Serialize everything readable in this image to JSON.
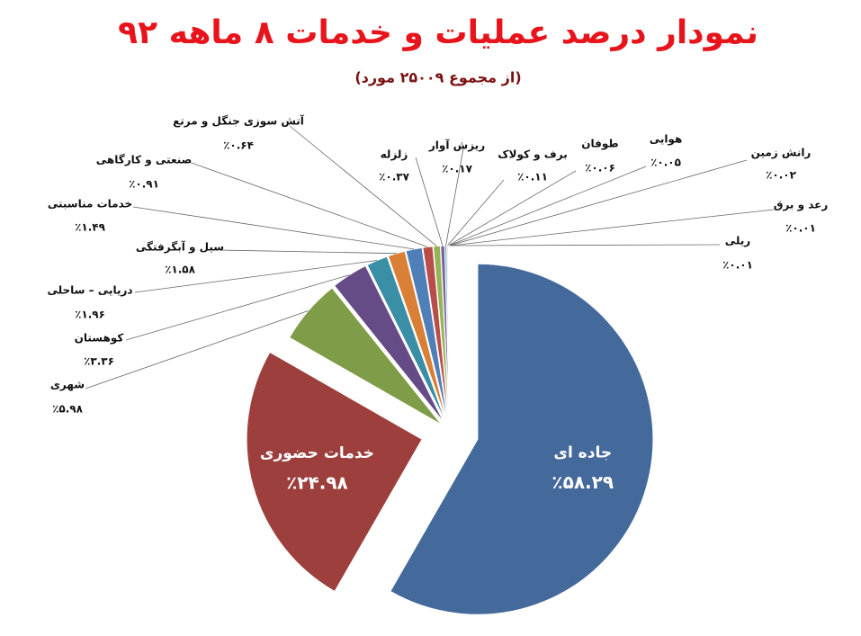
{
  "chart_data": {
    "type": "pie",
    "title": "نمودار درصد عملیات و خدمات ۸ ماهه ۹۲",
    "subtitle": "(از مجموع ۲۵۰۰۹ مورد)",
    "categories": [
      "جاده ای",
      "خدمات حضوری",
      "شهری",
      "کوهستان",
      "دریایی – ساحلی",
      "سیل و آبگرفتگی",
      "خدمات مناسبتی",
      "صنعتی و کارگاهی",
      "آتش سوزی جنگل و مرتع",
      "زلزله",
      "ریزش آوار",
      "برف و کولاک",
      "طوفان",
      "هوایی",
      "رانش زمین",
      "رعد و برق",
      "ریلی"
    ],
    "values": [
      58.29,
      24.98,
      5.98,
      3.36,
      1.96,
      1.58,
      1.49,
      0.91,
      0.64,
      0.37,
      0.17,
      0.11,
      0.06,
      0.05,
      0.02,
      0.01,
      0.01
    ],
    "value_labels": [
      "٪۵۸.۲۹",
      "٪۲۴.۹۸",
      "٪۵.۹۸",
      "٪۳.۳۶",
      "٪۱.۹۶",
      "٪۱.۵۸",
      "٪۱.۴۹",
      "٪۰.۹۱",
      "٪۰.۶۴",
      "٪۰.۳۷",
      "٪۰.۱۷",
      "٪۰.۱۱",
      "٪۰.۰۶",
      "٪۰.۰۵",
      "٪۰.۰۲",
      "٪۰.۰۱",
      "٪۰.۰۱"
    ],
    "colors": [
      "#44699b",
      "#9c3f3d",
      "#7f9c48",
      "#664c86",
      "#3a8ea6",
      "#d97f36",
      "#4f7fb8",
      "#b94d4a",
      "#94b455",
      "#7a609c",
      "#47a4bd",
      "#ee8f41",
      "#2f4f7a",
      "#7a2f2d",
      "#5f7636",
      "#4a3864",
      "#2b6b7d"
    ]
  }
}
